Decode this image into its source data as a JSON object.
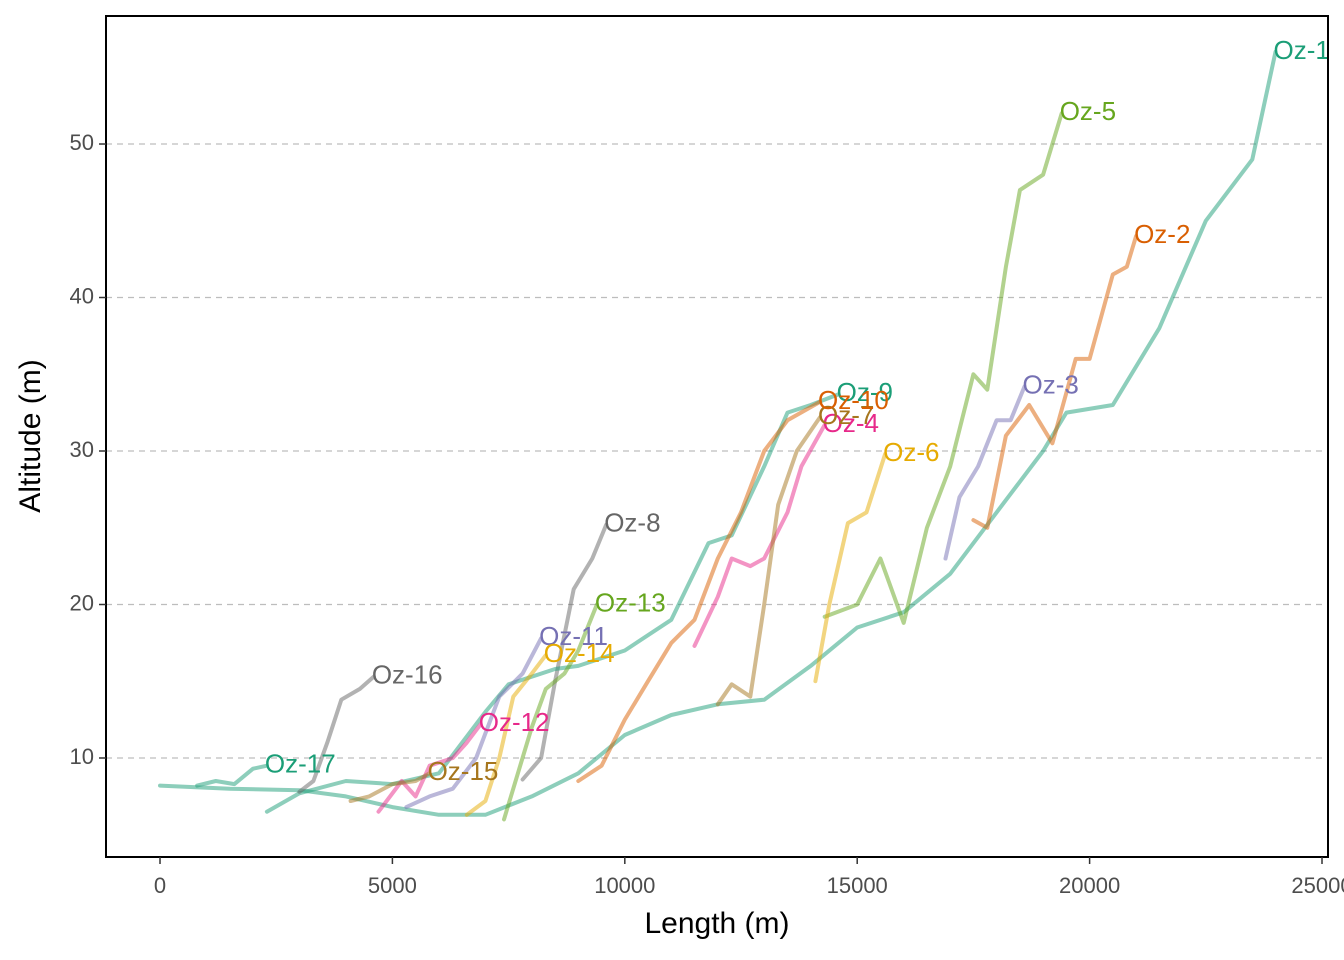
{
  "chart_data": {
    "type": "line",
    "x_label": "Length (m)",
    "y_label": "Altitude (m)",
    "xlim": [
      -1162,
      25129
    ],
    "ylim": [
      3.55,
      58.34
    ],
    "xticks": [
      0,
      5000,
      10000,
      15000,
      20000,
      25000
    ],
    "yticks": [
      10,
      20,
      30,
      40,
      50
    ],
    "grid": true,
    "series": [
      {
        "name": "Oz-1",
        "color": "#1B9E77",
        "x": [
          0,
          1500,
          3000,
          4000,
          5000,
          6000,
          7000,
          8000,
          9000,
          10000,
          11000,
          12000,
          13000,
          14000,
          15000,
          16000,
          17000,
          18000,
          19000,
          19500,
          20500,
          21500,
          22500,
          23500,
          24000
        ],
        "values": [
          8.2,
          8.0,
          7.9,
          7.5,
          6.8,
          6.3,
          6.3,
          7.5,
          9.0,
          11.5,
          12.8,
          13.5,
          13.8,
          16,
          18.5,
          19.5,
          22,
          26,
          30,
          32.5,
          33,
          38,
          45,
          49,
          56
        ]
      },
      {
        "name": "Oz-2",
        "color": "#D95F02",
        "x": [
          17500,
          17800,
          18200,
          18700,
          19200,
          19700,
          20000,
          20500,
          20800,
          21000
        ],
        "values": [
          25.5,
          25,
          31,
          33,
          30.5,
          36,
          36,
          41.5,
          42,
          44
        ]
      },
      {
        "name": "Oz-3",
        "color": "#7570B3",
        "x": [
          16900,
          17200,
          17600,
          18000,
          18300,
          18600
        ],
        "values": [
          23,
          27,
          29,
          32,
          32,
          34.2
        ]
      },
      {
        "name": "Oz-4",
        "color": "#E7298A",
        "x": [
          11500,
          12000,
          12300,
          12700,
          13000,
          13500,
          13800,
          14300
        ],
        "values": [
          17.3,
          20.5,
          23,
          22.5,
          23,
          26,
          29,
          31.7
        ]
      },
      {
        "name": "Oz-5",
        "color": "#66A61E",
        "x": [
          14300,
          15000,
          15500,
          16000,
          16500,
          17000,
          17500,
          17800,
          18200,
          18500,
          19000,
          19400
        ],
        "values": [
          19.2,
          20,
          23,
          18.8,
          25,
          29,
          35,
          34,
          42,
          47,
          48,
          52
        ]
      },
      {
        "name": "Oz-6",
        "color": "#E6AB02",
        "x": [
          14100,
          14400,
          14800,
          15200,
          15600
        ],
        "values": [
          15,
          20,
          25.3,
          26,
          29.8
        ]
      },
      {
        "name": "Oz-7",
        "color": "#A6761D",
        "x": [
          12000,
          12300,
          12700,
          13000,
          13300,
          13700,
          14200
        ],
        "values": [
          13.5,
          14.8,
          14,
          20,
          26.5,
          30,
          32.2
        ]
      },
      {
        "name": "Oz-8",
        "color": "#666666",
        "x": [
          7800,
          8200,
          8500,
          8900,
          9300,
          9600
        ],
        "values": [
          8.6,
          10,
          15,
          21,
          23,
          25.2
        ]
      },
      {
        "name": "Oz-9",
        "color": "#1B9E77",
        "x": [
          2300,
          3000,
          4000,
          5000,
          6000,
          7000,
          7500,
          8500,
          9000,
          10000,
          11000,
          11800,
          12300,
          13000,
          13500,
          14000,
          14600
        ],
        "values": [
          6.5,
          7.7,
          8.5,
          8.3,
          9,
          13,
          14.8,
          15.8,
          16,
          17,
          19,
          24,
          24.5,
          29,
          32.5,
          33,
          33.7
        ]
      },
      {
        "name": "Oz-10",
        "color": "#D95F02",
        "x": [
          9000,
          9500,
          10000,
          10500,
          11000,
          11500,
          12000,
          12500,
          13000,
          13500,
          14200
        ],
        "values": [
          8.5,
          9.5,
          12.5,
          15,
          17.5,
          19,
          23,
          26,
          30,
          32,
          33.2
        ]
      },
      {
        "name": "Oz-11",
        "color": "#7570B3",
        "x": [
          5300,
          5800,
          6300,
          6800,
          7300,
          7800,
          8200
        ],
        "values": [
          6.8,
          7.5,
          8,
          10,
          14,
          15.5,
          17.8
        ]
      },
      {
        "name": "Oz-12",
        "color": "#E7298A",
        "x": [
          4700,
          5200,
          5500,
          5800,
          6300,
          6600,
          6900
        ],
        "values": [
          6.5,
          8.5,
          7.5,
          9.5,
          10,
          11,
          12.2
        ]
      },
      {
        "name": "Oz-13",
        "color": "#66A61E",
        "x": [
          7400,
          7700,
          8000,
          8300,
          8700,
          9000,
          9400
        ],
        "values": [
          6,
          9,
          12,
          14.5,
          15.5,
          17,
          20
        ]
      },
      {
        "name": "Oz-14",
        "color": "#E6AB02",
        "x": [
          6600,
          7000,
          7300,
          7600,
          8000,
          8300
        ],
        "values": [
          6.3,
          7.2,
          10,
          14,
          15.5,
          16.7
        ]
      },
      {
        "name": "Oz-15",
        "color": "#A6761D",
        "x": [
          4100,
          4500,
          5000,
          5500,
          5800
        ],
        "values": [
          7.2,
          7.5,
          8.3,
          8.5,
          9
        ]
      },
      {
        "name": "Oz-16",
        "color": "#666666",
        "x": [
          3000,
          3300,
          3600,
          3900,
          4300,
          4600
        ],
        "values": [
          7.8,
          8.5,
          11,
          13.8,
          14.5,
          15.3
        ]
      },
      {
        "name": "Oz-17",
        "color": "#1B9E77",
        "x": [
          800,
          1200,
          1600,
          2000,
          2300
        ],
        "values": [
          8.2,
          8.5,
          8.3,
          9.3,
          9.5
        ]
      }
    ]
  }
}
